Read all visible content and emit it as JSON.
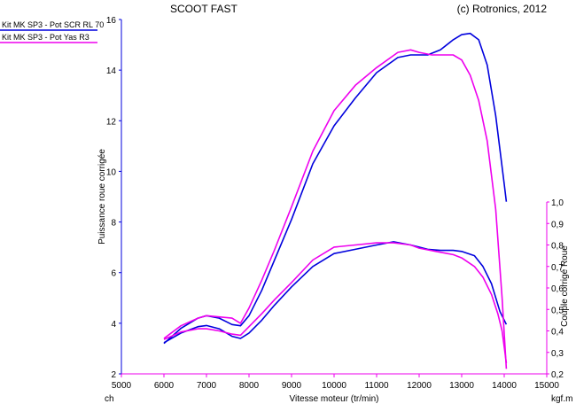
{
  "chart_data": {
    "type": "line",
    "title": "SCOOT FAST",
    "copyright": "(c) Rotronics, 2012",
    "xlabel": "Vitesse moteur (tr/min)",
    "ylabel": "Puissance roue corrigée",
    "y2label": "Couple corrigé Roue",
    "x_unit_left": "ch",
    "x_unit_right": "kgf.m",
    "xlim": [
      5000,
      15000
    ],
    "ylim": [
      2,
      16
    ],
    "y2lim": [
      0.2,
      1.0
    ],
    "xticks": [
      "5000",
      "6000",
      "7000",
      "8000",
      "9000",
      "10000",
      "11000",
      "12000",
      "13000",
      "14000",
      "15000"
    ],
    "yticks": [
      "2",
      "4",
      "6",
      "8",
      "10",
      "12",
      "14",
      "16"
    ],
    "y2ticks": [
      "0,2",
      "0,3",
      "0,4",
      "0,5",
      "0,6",
      "0,7",
      "0,8",
      "0,9",
      "1,0"
    ],
    "legend_position": "top-left",
    "series": [
      {
        "name": "Kit MK SP3 - Pot SCR RL 70",
        "color": "#0000dd",
        "power": {
          "x": [
            6000,
            6400,
            6800,
            7000,
            7300,
            7600,
            7800,
            8000,
            8300,
            8600,
            9000,
            9500,
            10000,
            10500,
            11000,
            11500,
            11800,
            12000,
            12200,
            12500,
            12800,
            13000,
            13200,
            13400,
            13600,
            13800,
            14000,
            14050
          ],
          "y": [
            3.2,
            3.8,
            4.2,
            4.3,
            4.2,
            3.95,
            3.9,
            4.3,
            5.3,
            6.5,
            8.1,
            10.3,
            11.8,
            12.9,
            13.9,
            14.5,
            14.6,
            14.6,
            14.6,
            14.8,
            15.2,
            15.4,
            15.45,
            15.2,
            14.2,
            12.2,
            9.5,
            8.8
          ]
        },
        "torque": {
          "x": [
            6000,
            6400,
            6800,
            7000,
            7300,
            7600,
            7800,
            8000,
            8300,
            8600,
            9000,
            9500,
            10000,
            10500,
            11000,
            11400,
            11800,
            12000,
            12200,
            12500,
            12800,
            13000,
            13300,
            13500,
            13700,
            13900,
            14050
          ],
          "y": [
            0.345,
            0.39,
            0.42,
            0.425,
            0.41,
            0.375,
            0.365,
            0.39,
            0.45,
            0.52,
            0.605,
            0.7,
            0.76,
            0.78,
            0.8,
            0.815,
            0.8,
            0.79,
            0.78,
            0.775,
            0.775,
            0.77,
            0.75,
            0.7,
            0.62,
            0.49,
            0.43
          ]
        }
      },
      {
        "name": "Kit MK SP3 - Pot Yas R3",
        "color": "#ee00ee",
        "power": {
          "x": [
            6000,
            6400,
            6800,
            7000,
            7300,
            7600,
            7800,
            8000,
            8300,
            8600,
            9000,
            9500,
            10000,
            10500,
            11000,
            11500,
            11800,
            12000,
            12300,
            12600,
            12800,
            13000,
            13200,
            13400,
            13600,
            13800,
            13950,
            14050
          ],
          "y": [
            3.4,
            3.9,
            4.2,
            4.3,
            4.25,
            4.2,
            4.0,
            4.6,
            5.7,
            6.9,
            8.6,
            10.8,
            12.4,
            13.4,
            14.1,
            14.7,
            14.8,
            14.7,
            14.6,
            14.6,
            14.6,
            14.4,
            13.8,
            12.8,
            11.2,
            8.5,
            5.0,
            2.2
          ]
        },
        "torque": {
          "x": [
            6000,
            6400,
            6800,
            7000,
            7300,
            7600,
            7800,
            8000,
            8300,
            8600,
            9000,
            9500,
            10000,
            10500,
            11000,
            11400,
            11800,
            12000,
            12400,
            12800,
            13000,
            13300,
            13500,
            13700,
            13850,
            13950,
            14050
          ],
          "y": [
            0.36,
            0.395,
            0.41,
            0.41,
            0.4,
            0.385,
            0.38,
            0.42,
            0.48,
            0.545,
            0.625,
            0.73,
            0.79,
            0.8,
            0.81,
            0.81,
            0.8,
            0.785,
            0.77,
            0.755,
            0.74,
            0.7,
            0.65,
            0.57,
            0.48,
            0.4,
            0.25
          ]
        }
      }
    ]
  }
}
